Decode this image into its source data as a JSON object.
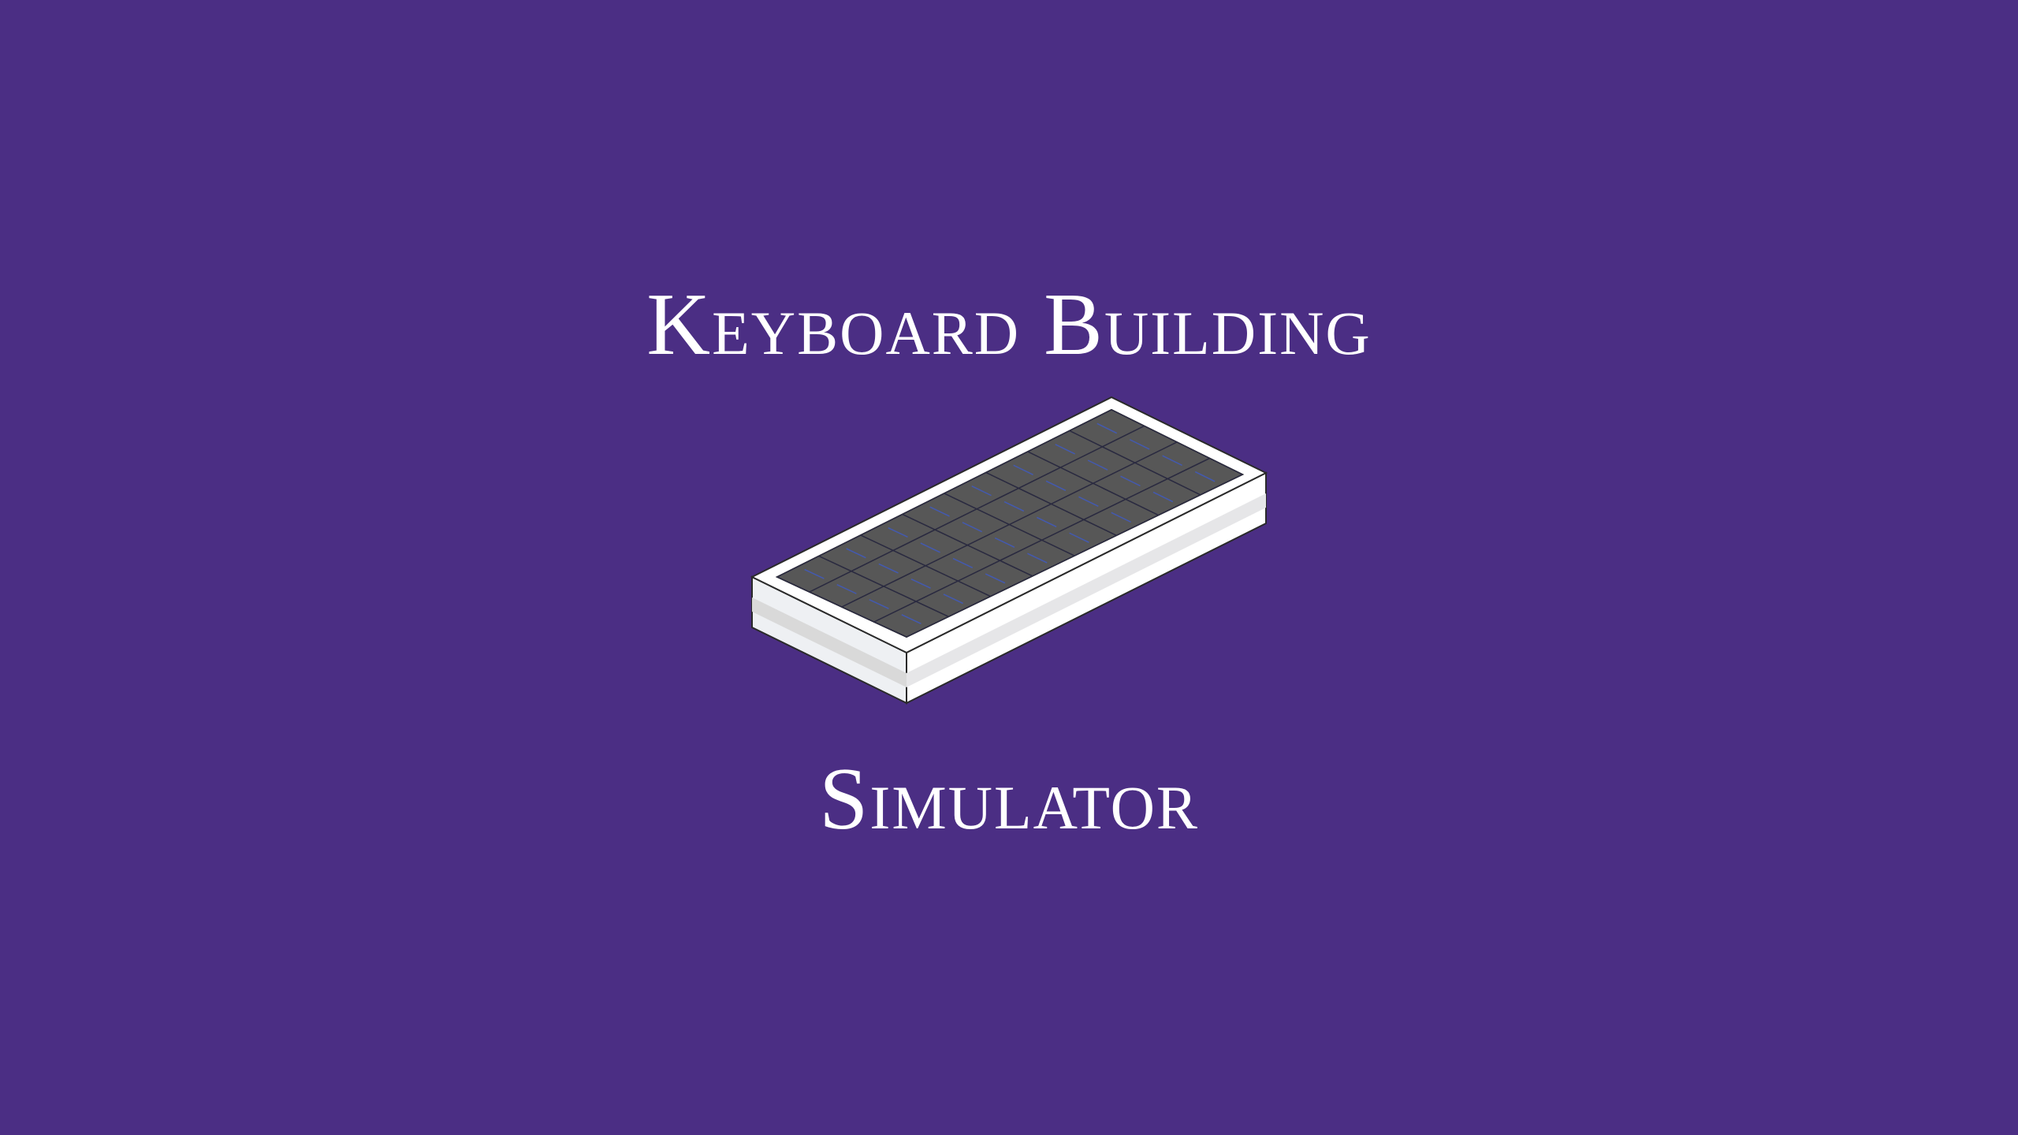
{
  "title": {
    "line1": "Keyboard Building",
    "line2": "Simulator"
  },
  "keyboard": {
    "icon": "keyboard-icon",
    "rows": 4,
    "columns": 8
  },
  "colors": {
    "background": "#4b2e84",
    "text": "#ffffff",
    "case_top": "#ffffff",
    "case_front": "#eef0f3",
    "case_stripe": "#d9d9d9",
    "keys": "#575757",
    "key_lines": "#2a2a40",
    "key_glow": "#3b5bd6"
  }
}
